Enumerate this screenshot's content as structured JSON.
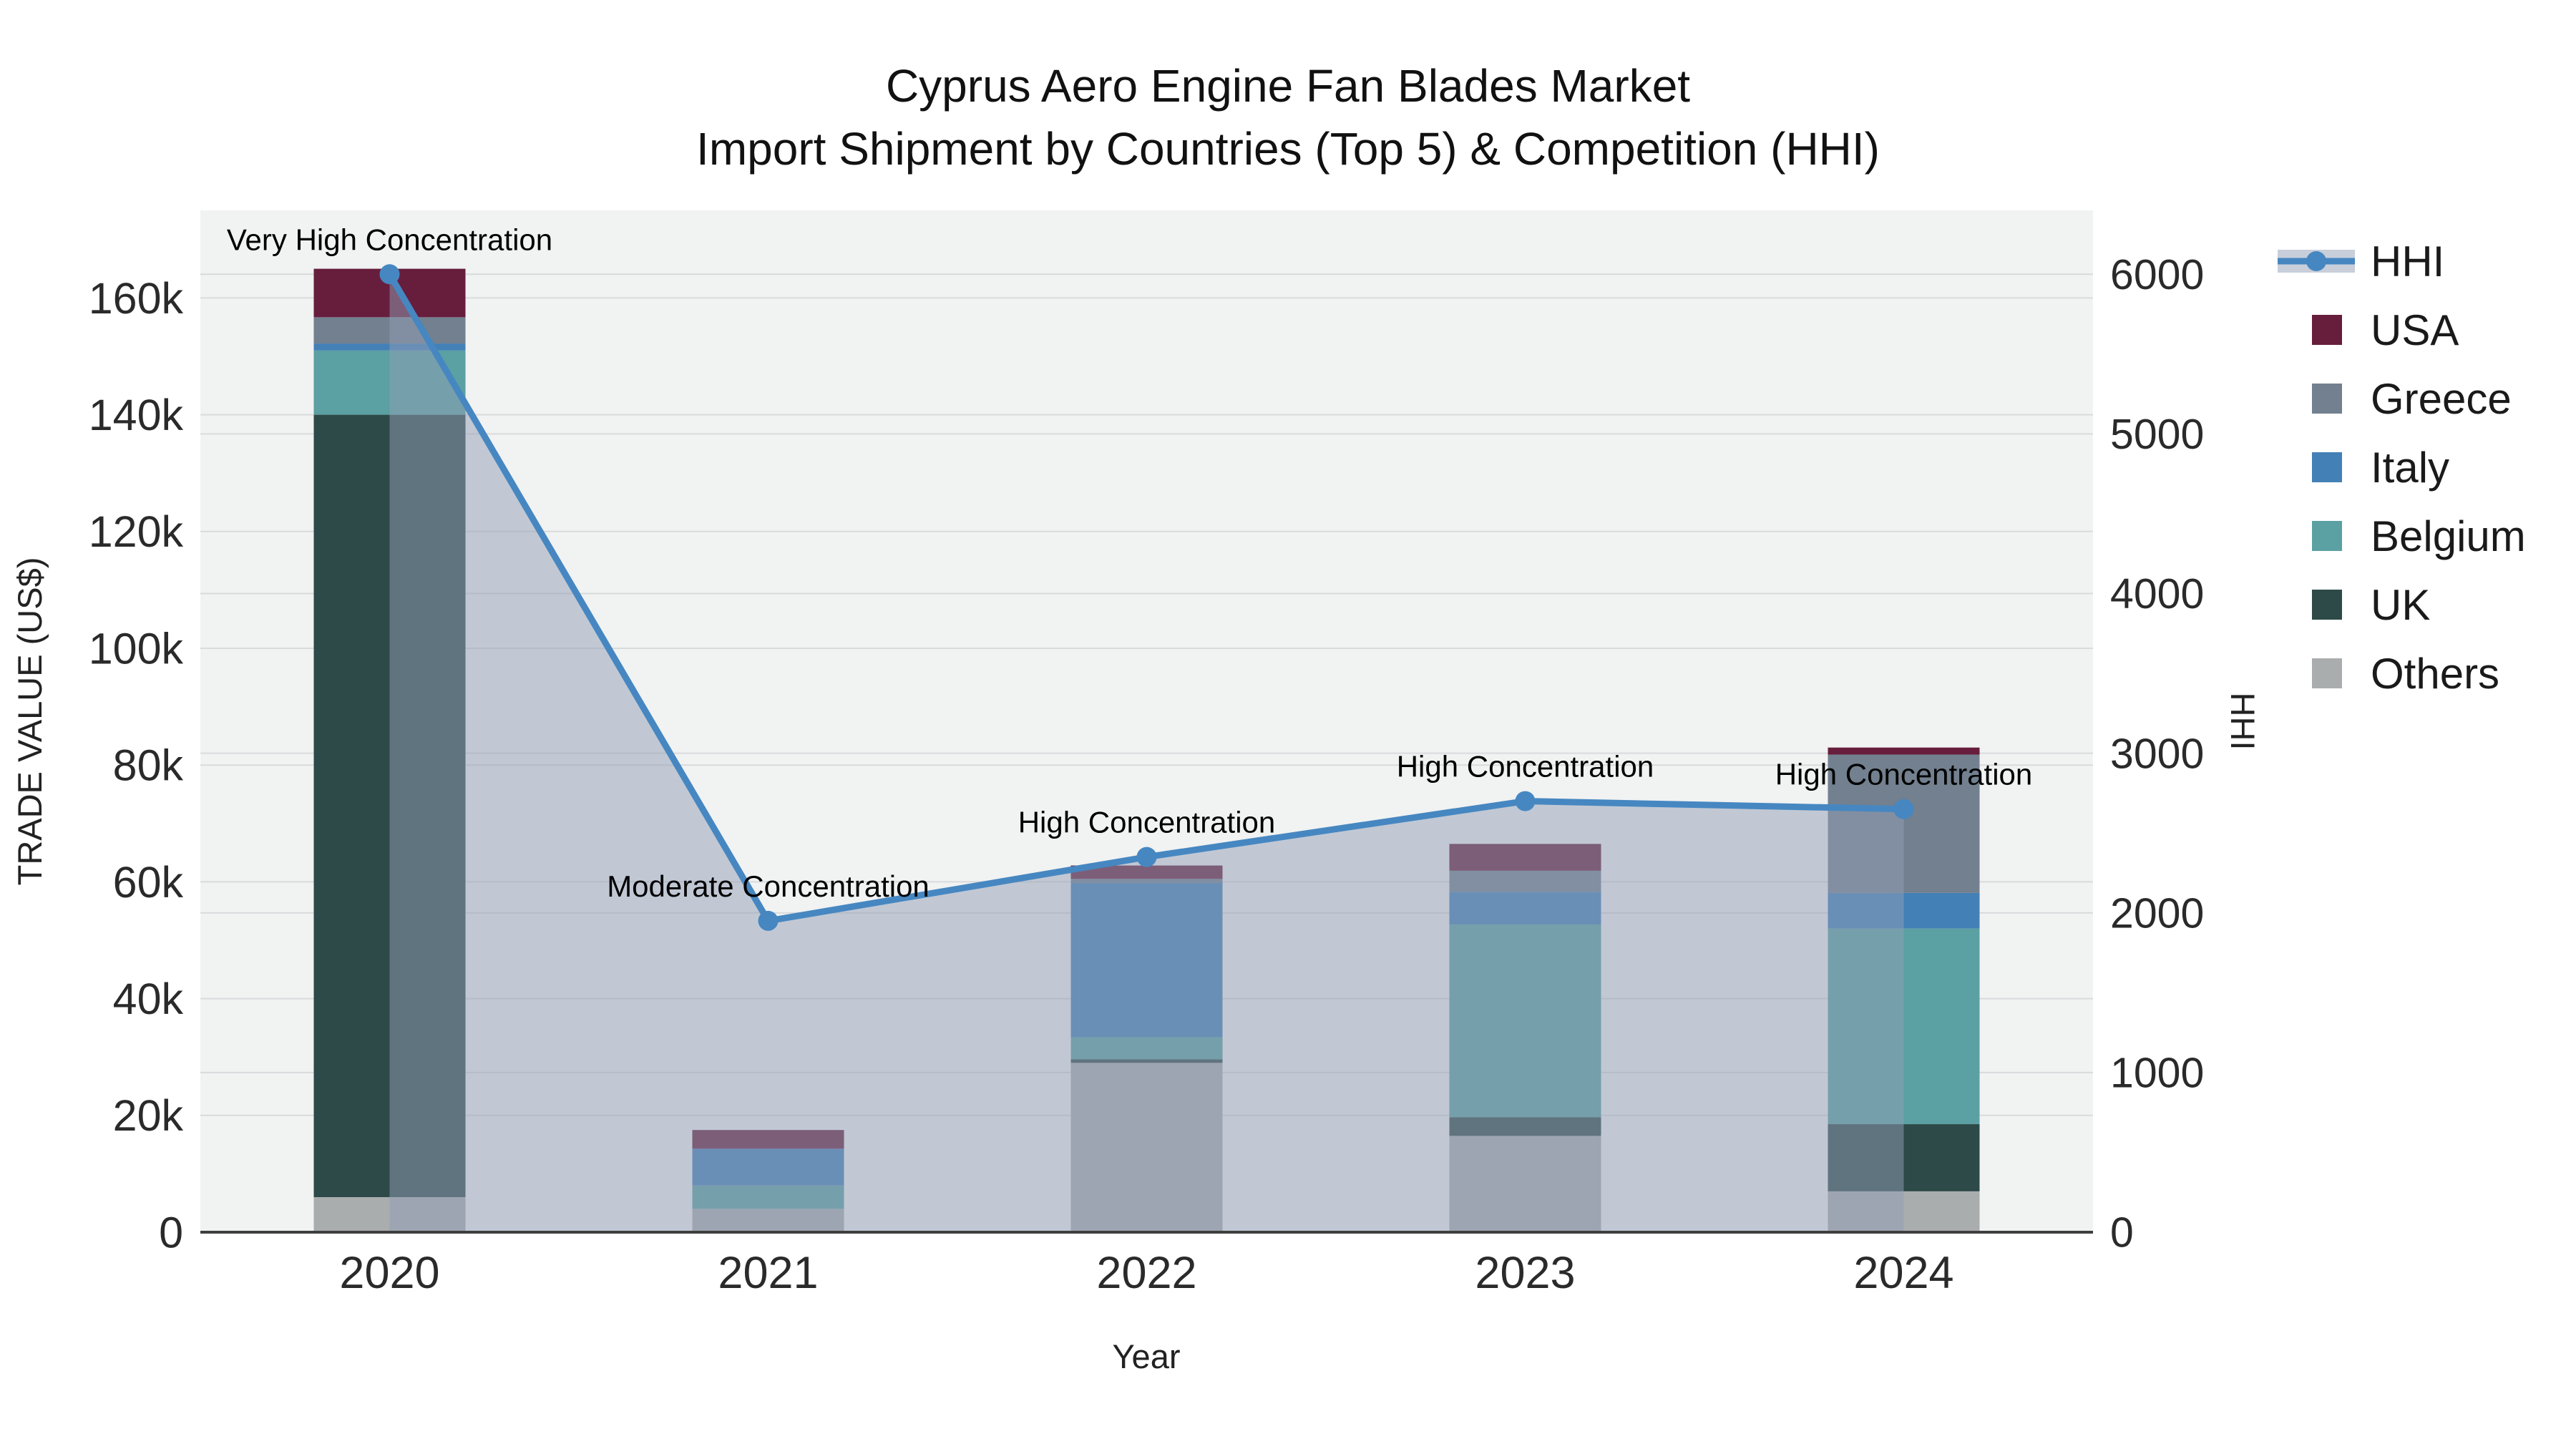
{
  "title": {
    "line1": "Cyprus Aero Engine Fan Blades Market",
    "line2": "Import Shipment by Countries (Top 5) & Competition (HHI)"
  },
  "axes": {
    "x": {
      "title": "Year"
    },
    "y_left": {
      "title": "TRADE VALUE (US$)",
      "tick_labels": [
        "0",
        "20k",
        "40k",
        "60k",
        "80k",
        "100k",
        "120k",
        "140k",
        "160k"
      ],
      "tick_values": [
        0,
        20000,
        40000,
        60000,
        80000,
        100000,
        120000,
        140000,
        160000
      ]
    },
    "y_right": {
      "title": "HHI",
      "tick_labels": [
        "0",
        "1000",
        "2000",
        "3000",
        "4000",
        "5000",
        "6000"
      ],
      "tick_values": [
        0,
        1000,
        2000,
        3000,
        4000,
        5000,
        6000
      ]
    }
  },
  "legend": {
    "items": [
      {
        "label": "HHI",
        "type": "line",
        "color": "#4687c1"
      },
      {
        "label": "USA",
        "type": "swatch",
        "color": "#671e3d"
      },
      {
        "label": "Greece",
        "type": "swatch",
        "color": "#72808f"
      },
      {
        "label": "Italy",
        "type": "swatch",
        "color": "#4380b6"
      },
      {
        "label": "Belgium",
        "type": "swatch",
        "color": "#5ba0a2"
      },
      {
        "label": "UK",
        "type": "swatch",
        "color": "#2d4a48"
      },
      {
        "label": "Others",
        "type": "swatch",
        "color": "#aaadae"
      }
    ]
  },
  "chart_data": {
    "type": "bar+line",
    "title": "Cyprus Aero Engine Fan Blades Market — Import Shipment by Countries (Top 5) & Competition (HHI)",
    "categories": [
      "2020",
      "2021",
      "2022",
      "2023",
      "2024"
    ],
    "xlabel": "Year",
    "ylabel_left": "TRADE VALUE (US$)",
    "ylabel_right": "HHI",
    "ylim_left": [
      0,
      175000
    ],
    "ylim_right": [
      0,
      6400
    ],
    "grid": true,
    "legend_position": "right",
    "stack_order_bottom_to_top": [
      "Others",
      "UK",
      "Belgium",
      "Italy",
      "Greece",
      "USA"
    ],
    "series": [
      {
        "name": "Others",
        "color": "#aaadae",
        "values": [
          6000,
          4000,
          29000,
          16500,
          7000
        ]
      },
      {
        "name": "UK",
        "color": "#2d4a48",
        "values": [
          134000,
          0,
          600,
          3200,
          11500
        ]
      },
      {
        "name": "Belgium",
        "color": "#5ba0a2",
        "values": [
          11000,
          4000,
          3800,
          33000,
          33500
        ]
      },
      {
        "name": "Italy",
        "color": "#4380b6",
        "values": [
          1200,
          6300,
          26400,
          5600,
          6100
        ]
      },
      {
        "name": "Greece",
        "color": "#72808f",
        "values": [
          4500,
          0,
          700,
          3600,
          23700
        ]
      },
      {
        "name": "USA",
        "color": "#671e3d",
        "values": [
          8300,
          3200,
          2300,
          4600,
          1200
        ]
      }
    ],
    "line_series": {
      "name": "HHI",
      "axis": "right",
      "color": "#4687c1",
      "area_fill_color": "rgba(146,158,181,0.5)",
      "values": [
        6000,
        1950,
        2350,
        2700,
        2650
      ]
    },
    "annotations": [
      {
        "category": "2020",
        "text": "Very High Concentration"
      },
      {
        "category": "2021",
        "text": "Moderate Concentration"
      },
      {
        "category": "2022",
        "text": "High Concentration"
      },
      {
        "category": "2023",
        "text": "High Concentration"
      },
      {
        "category": "2024",
        "text": "High Concentration"
      }
    ]
  }
}
